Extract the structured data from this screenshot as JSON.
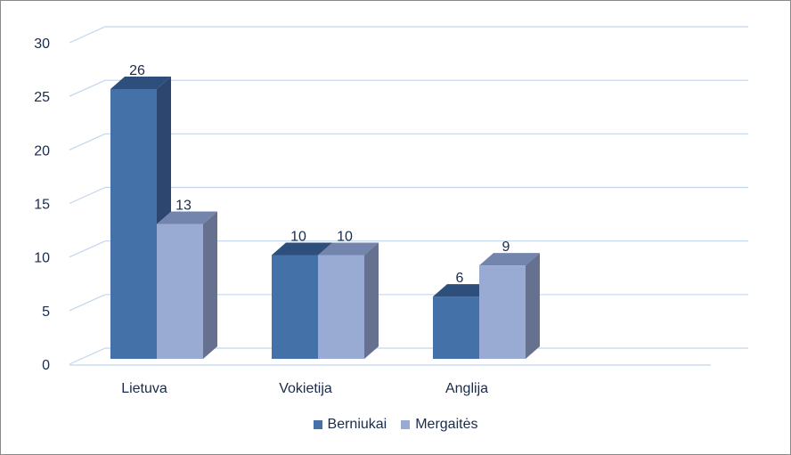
{
  "chart_data": {
    "type": "bar",
    "categories": [
      "Lietuva",
      "Vokietija",
      "Anglija"
    ],
    "series": [
      {
        "name": "Berniukai",
        "values": [
          26,
          10,
          6
        ]
      },
      {
        "name": "Mergaitės",
        "values": [
          13,
          10,
          9
        ]
      }
    ],
    "ylim": [
      0,
      30
    ],
    "yticks": [
      0,
      5,
      10,
      15,
      20,
      25,
      30
    ],
    "yticks_labels": [
      "0",
      "5",
      "10",
      "15",
      "20",
      "25",
      "30"
    ],
    "grid": true,
    "legend": "bottom",
    "style": "3d-clustered-column",
    "colors": {
      "Berniukai": "#4472a8",
      "Mergaitės": "#9aabd3",
      "grid": "#c3d5ec",
      "text": "#1a2b4a"
    }
  }
}
